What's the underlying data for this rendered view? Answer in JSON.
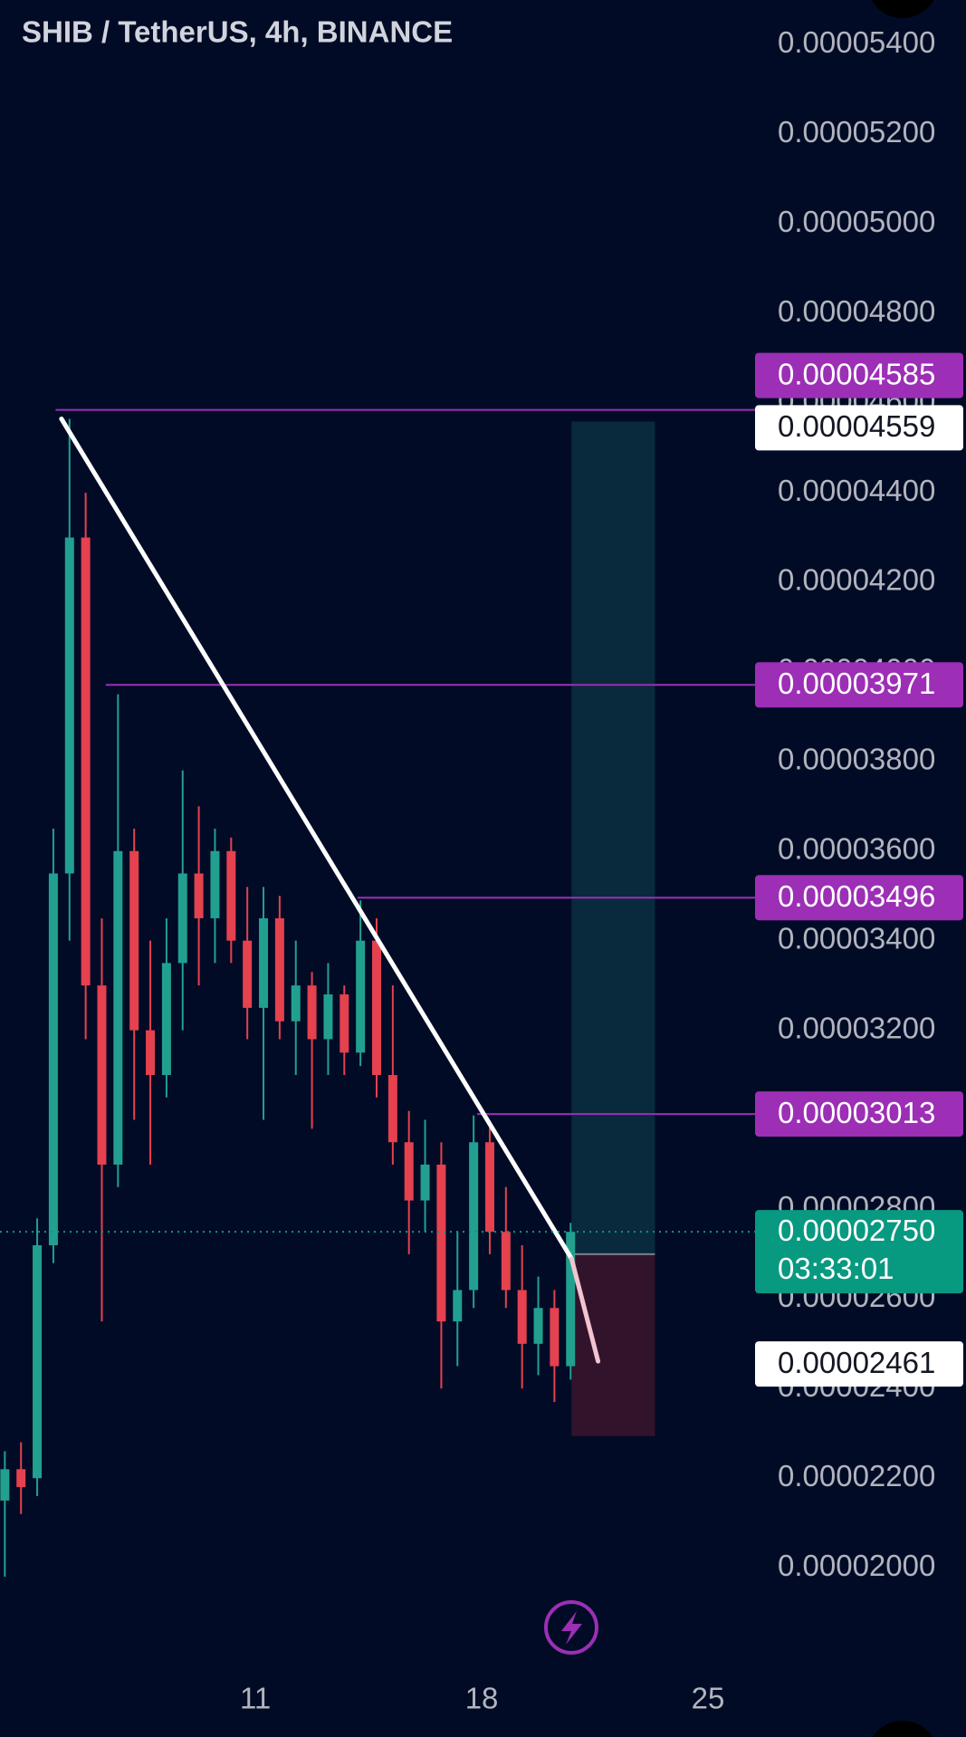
{
  "chart_data": {
    "type": "candlestick",
    "title": "SHIB / TetherUS, 4h, BINANCE",
    "xlim": [
      3.1,
      26.4
    ],
    "xticks": [
      11,
      18,
      25
    ],
    "ylim": [
      1.79e-05,
      5.5e-05
    ],
    "yticks": [
      {
        "value": 2e-05,
        "label": "0.00002000"
      },
      {
        "value": 2.2e-05,
        "label": "0.00002200"
      },
      {
        "value": 2.4e-05,
        "label": "0.00002400"
      },
      {
        "value": 2.6e-05,
        "label": "0.00002600"
      },
      {
        "value": 2.8e-05,
        "label": "0.00002800"
      },
      {
        "value": 3e-05,
        "label": "0.00003000"
      },
      {
        "value": 3.2e-05,
        "label": "0.00003200"
      },
      {
        "value": 3.4e-05,
        "label": "0.00003400"
      },
      {
        "value": 3.6e-05,
        "label": "0.00003600"
      },
      {
        "value": 3.8e-05,
        "label": "0.00003800"
      },
      {
        "value": 4e-05,
        "label": "0.00004000"
      },
      {
        "value": 4.2e-05,
        "label": "0.00004200"
      },
      {
        "value": 4.4e-05,
        "label": "0.00004400"
      },
      {
        "value": 4.6e-05,
        "label": "0.00004600"
      },
      {
        "value": 4.8e-05,
        "label": "0.00004800"
      },
      {
        "value": 5e-05,
        "label": "0.00005000"
      },
      {
        "value": 5.2e-05,
        "label": "0.00005200"
      },
      {
        "value": 5.4e-05,
        "label": "0.00005400"
      }
    ],
    "up_color": "#22a08f",
    "down_color": "#e5414f",
    "candles": {
      "x": [
        3.25,
        3.75,
        4.25,
        4.75,
        5.25,
        5.75,
        6.25,
        6.75,
        7.25,
        7.75,
        8.25,
        8.75,
        9.25,
        9.75,
        10.25,
        10.75,
        11.25,
        11.75,
        12.25,
        12.75,
        13.25,
        13.75,
        14.25,
        14.75,
        15.25,
        15.75,
        16.25,
        16.75,
        17.25,
        17.75,
        18.25,
        18.75,
        19.25,
        19.75,
        20.25,
        20.75
      ],
      "open": [
        2.15e-05,
        2.22e-05,
        2.2e-05,
        2.72e-05,
        3.55e-05,
        4.3e-05,
        3.3e-05,
        2.9e-05,
        3.6e-05,
        3.2e-05,
        3.1e-05,
        3.35e-05,
        3.55e-05,
        3.45e-05,
        3.6e-05,
        3.4e-05,
        3.25e-05,
        3.45e-05,
        3.22e-05,
        3.3e-05,
        3.18e-05,
        3.28e-05,
        3.15e-05,
        3.4e-05,
        3.1e-05,
        2.95e-05,
        2.82e-05,
        2.9e-05,
        2.55e-05,
        2.62e-05,
        2.95e-05,
        2.75e-05,
        2.62e-05,
        2.5e-05,
        2.58e-05,
        2.45e-05
      ],
      "high": [
        2.26e-05,
        2.28e-05,
        2.78e-05,
        3.65e-05,
        4.565e-05,
        4.4e-05,
        3.45e-05,
        3.95e-05,
        3.65e-05,
        3.4e-05,
        3.45e-05,
        3.78e-05,
        3.7e-05,
        3.65e-05,
        3.63e-05,
        3.52e-05,
        3.52e-05,
        3.5e-05,
        3.4e-05,
        3.33e-05,
        3.35e-05,
        3.3e-05,
        3.49e-05,
        3.45e-05,
        3.3e-05,
        3.02e-05,
        3e-05,
        2.95e-05,
        2.75e-05,
        3.01e-05,
        2.99e-05,
        2.85e-05,
        2.72e-05,
        2.65e-05,
        2.62e-05,
        2.77e-05
      ],
      "low": [
        1.98e-05,
        2.12e-05,
        2.16e-05,
        2.68e-05,
        3.4e-05,
        3.18e-05,
        2.55e-05,
        2.85e-05,
        3e-05,
        2.9e-05,
        3.05e-05,
        3.2e-05,
        3.3e-05,
        3.35e-05,
        3.35e-05,
        3.18e-05,
        3e-05,
        3.18e-05,
        3.1e-05,
        2.98e-05,
        3.1e-05,
        3.1e-05,
        3.12e-05,
        3.05e-05,
        2.9e-05,
        2.7e-05,
        2.75e-05,
        2.4e-05,
        2.45e-05,
        2.58e-05,
        2.7e-05,
        2.58e-05,
        2.4e-05,
        2.43e-05,
        2.37e-05,
        2.42e-05
      ],
      "close": [
        2.22e-05,
        2.18e-05,
        2.72e-05,
        3.55e-05,
        4.3e-05,
        3.3e-05,
        2.9e-05,
        3.6e-05,
        3.2e-05,
        3.1e-05,
        3.35e-05,
        3.55e-05,
        3.45e-05,
        3.6e-05,
        3.4e-05,
        3.25e-05,
        3.45e-05,
        3.22e-05,
        3.3e-05,
        3.18e-05,
        3.28e-05,
        3.15e-05,
        3.4e-05,
        3.1e-05,
        2.95e-05,
        2.82e-05,
        2.9e-05,
        2.55e-05,
        2.62e-05,
        2.95e-05,
        2.75e-05,
        2.62e-05,
        2.5e-05,
        2.58e-05,
        2.45e-05,
        2.75e-05
      ]
    },
    "trendline": {
      "x": [
        5.0,
        20.78
      ],
      "y": [
        4.565e-05,
        2.69e-05
      ],
      "color": "#ffffff"
    },
    "projection": {
      "x_end": 21.6,
      "value": 2.461e-05,
      "label": "0.00002461",
      "color": "#f2c4cf"
    },
    "levels_color": "#9c2fb5",
    "levels": [
      {
        "value": 4.585e-05,
        "label": "0.00004585",
        "x_start": 4.82
      },
      {
        "value": 3.971e-05,
        "label": "0.00003971",
        "x_start": 6.37
      },
      {
        "value": 3.496e-05,
        "label": "0.00003496",
        "x_start": 14.16
      },
      {
        "value": 3.013e-05,
        "label": "0.00003013",
        "x_start": 17.86
      }
    ],
    "position": {
      "x": [
        20.78,
        23.36
      ],
      "top": 4.559e-05,
      "top_label": "0.00004559",
      "entry": 2.7e-05,
      "bottom": 2.294e-05
    },
    "current": {
      "value": 2.75e-05,
      "label": "0.00002750",
      "countdown": "03:33:01",
      "color": "#089981"
    }
  }
}
